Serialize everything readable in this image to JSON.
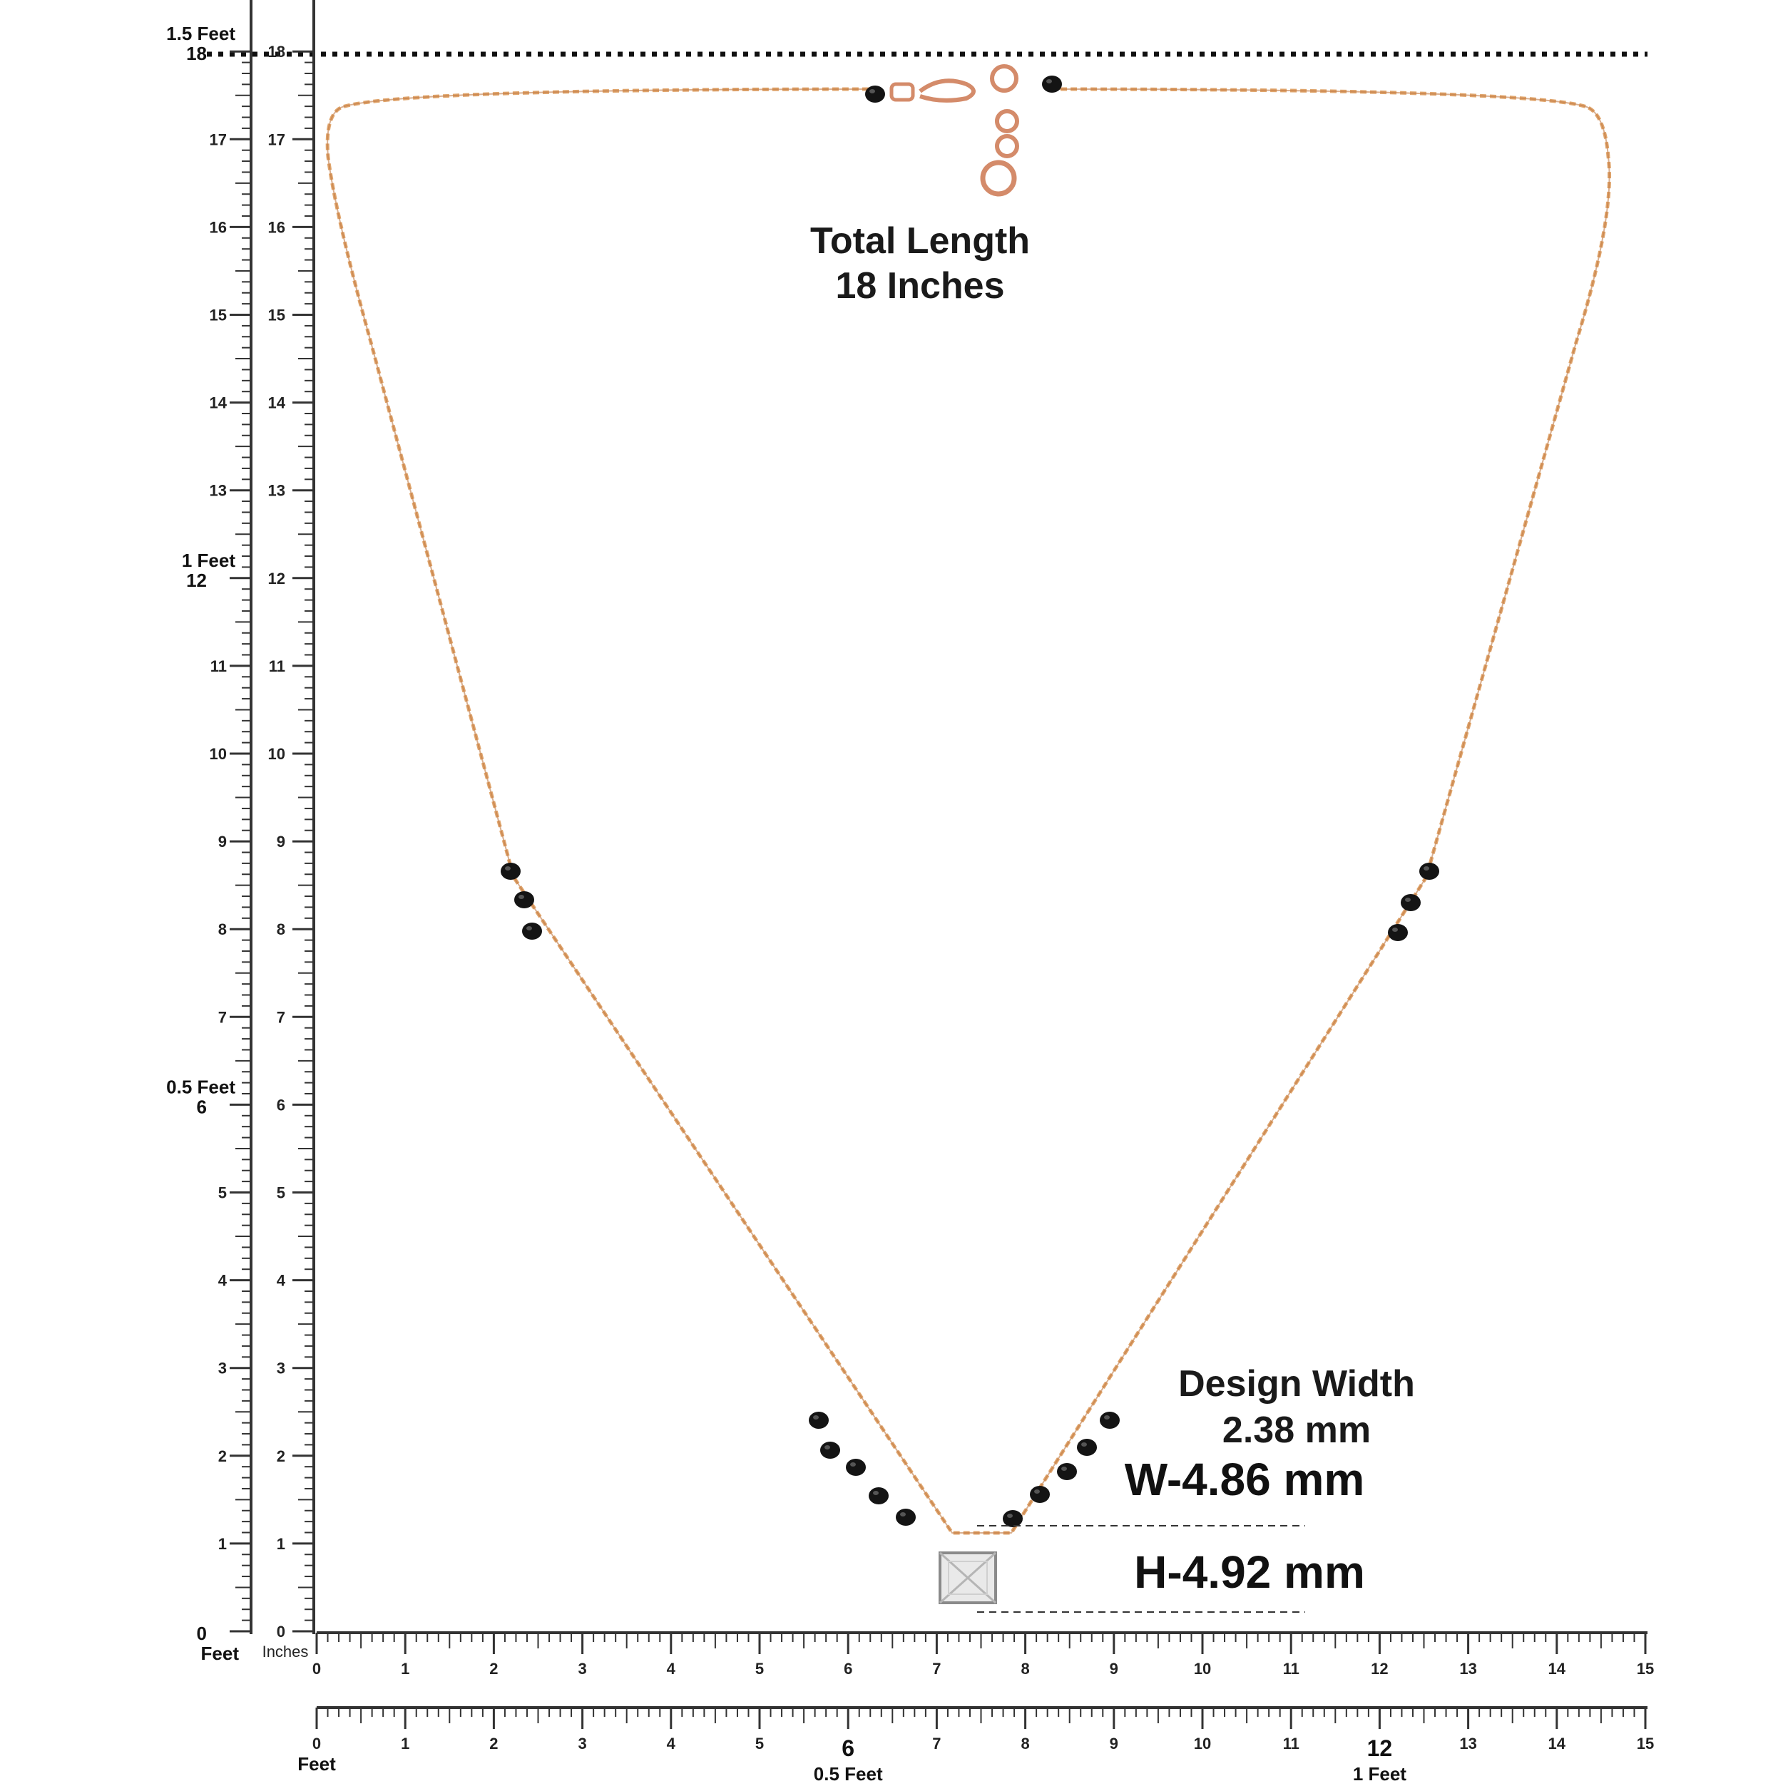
{
  "colors": {
    "chain": "#e0a56c",
    "chain_dark": "#c07a45",
    "bead": "#141414",
    "clasp": "#d48b6a",
    "ruler": "#333333",
    "stone": "#e8e8e8"
  },
  "vertical_scale": {
    "feet_marks": [
      {
        "value": 0,
        "label": "0",
        "caption": "Feet"
      },
      {
        "value": 6,
        "label": "6",
        "caption": "0.5 Feet"
      },
      {
        "value": 12,
        "label": "12",
        "caption": "1 Feet"
      },
      {
        "value": 18,
        "label": "18",
        "caption": "1.5 Feet"
      }
    ],
    "inch_labels": [
      "1",
      "2",
      "3",
      "4",
      "5",
      "7",
      "8",
      "9",
      "10",
      "11",
      "13",
      "14",
      "15",
      "16",
      "17"
    ],
    "inches_ruler_labels": [
      "0",
      "1",
      "2",
      "3",
      "4",
      "5",
      "6",
      "7",
      "8",
      "9",
      "10",
      "11",
      "12",
      "13",
      "14",
      "15",
      "16",
      "17",
      "18"
    ],
    "inches_caption": "Inches"
  },
  "horizontal_scale": {
    "inches_labels": [
      "0",
      "1",
      "2",
      "3",
      "4",
      "5",
      "6",
      "7",
      "8",
      "9",
      "10",
      "11",
      "12",
      "13",
      "14",
      "15"
    ],
    "feet_labels": [
      "0",
      "1",
      "2",
      "3",
      "4",
      "5",
      "6",
      "7",
      "8",
      "9",
      "10",
      "11",
      "12",
      "13",
      "14",
      "15"
    ],
    "feet_caption": "Feet",
    "half_foot_caption": "0.5 Feet",
    "one_foot_caption": "1 Feet"
  },
  "annotations": {
    "total_length_line1": "Total Length",
    "total_length_line2": "18 Inches",
    "design_width_line1": "Design Width",
    "design_width_line2": "2.38 mm",
    "width_dimension": "W-4.86 mm",
    "height_dimension": "H-4.92 mm"
  }
}
